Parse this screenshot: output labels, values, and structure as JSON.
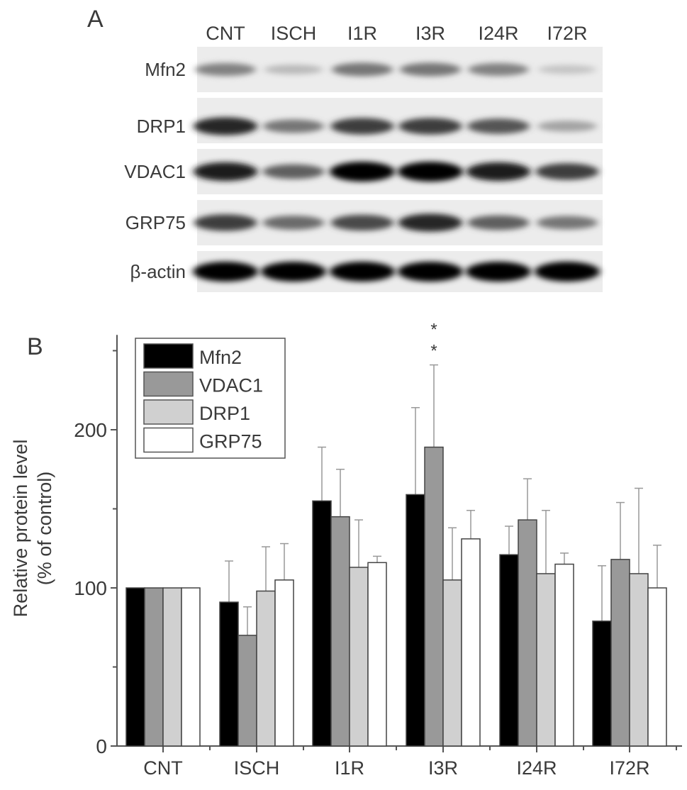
{
  "panel_a": {
    "label": "A",
    "lanes": [
      "CNT",
      "ISCH",
      "I1R",
      "I3R",
      "I24R",
      "I72R"
    ],
    "rows": [
      {
        "name": "Mfn2",
        "band_intensity": [
          0.45,
          0.2,
          0.5,
          0.5,
          0.45,
          0.15
        ]
      },
      {
        "name": "DRP1",
        "band_intensity": [
          0.85,
          0.5,
          0.75,
          0.75,
          0.65,
          0.3
        ]
      },
      {
        "name": "VDAC1",
        "band_intensity": [
          0.9,
          0.6,
          1.0,
          1.0,
          0.9,
          0.75
        ]
      },
      {
        "name": "GRP75",
        "band_intensity": [
          0.75,
          0.55,
          0.7,
          0.85,
          0.6,
          0.5
        ]
      },
      {
        "name": "β-actin",
        "band_intensity": [
          1.0,
          1.0,
          1.0,
          1.0,
          1.0,
          1.0
        ]
      }
    ]
  },
  "chart_data": {
    "type": "bar",
    "panel_label": "B",
    "categories": [
      "CNT",
      "ISCH",
      "I1R",
      "I3R",
      "I24R",
      "I72R"
    ],
    "series": [
      {
        "name": "Mfn2",
        "color": "#000000",
        "values": [
          100,
          91,
          155,
          159,
          121,
          79
        ],
        "error": [
          0,
          26,
          34,
          55,
          18,
          35
        ]
      },
      {
        "name": "VDAC1",
        "color": "#999999",
        "values": [
          100,
          70,
          145,
          189,
          143,
          118
        ],
        "error": [
          0,
          18,
          30,
          52,
          26,
          36
        ]
      },
      {
        "name": "DRP1",
        "color": "#d0d0d0",
        "values": [
          100,
          98,
          113,
          105,
          109,
          109
        ],
        "error": [
          0,
          28,
          30,
          33,
          40,
          54
        ]
      },
      {
        "name": "GRP75",
        "color": "#ffffff",
        "values": [
          100,
          105,
          116,
          131,
          115,
          100
        ],
        "error": [
          0,
          23,
          4,
          18,
          7,
          27
        ]
      }
    ],
    "ylabel_line1": "Relative protein level",
    "ylabel_line2": "(% of control)",
    "ylim": [
      0,
      260
    ],
    "yticks": [
      0,
      100,
      200
    ],
    "yticks_minor": [
      50,
      150,
      250
    ],
    "annotations": [
      {
        "category": "I3R",
        "series": "VDAC1",
        "text": "**"
      }
    ],
    "legend_position": "top-left",
    "grid": false
  }
}
